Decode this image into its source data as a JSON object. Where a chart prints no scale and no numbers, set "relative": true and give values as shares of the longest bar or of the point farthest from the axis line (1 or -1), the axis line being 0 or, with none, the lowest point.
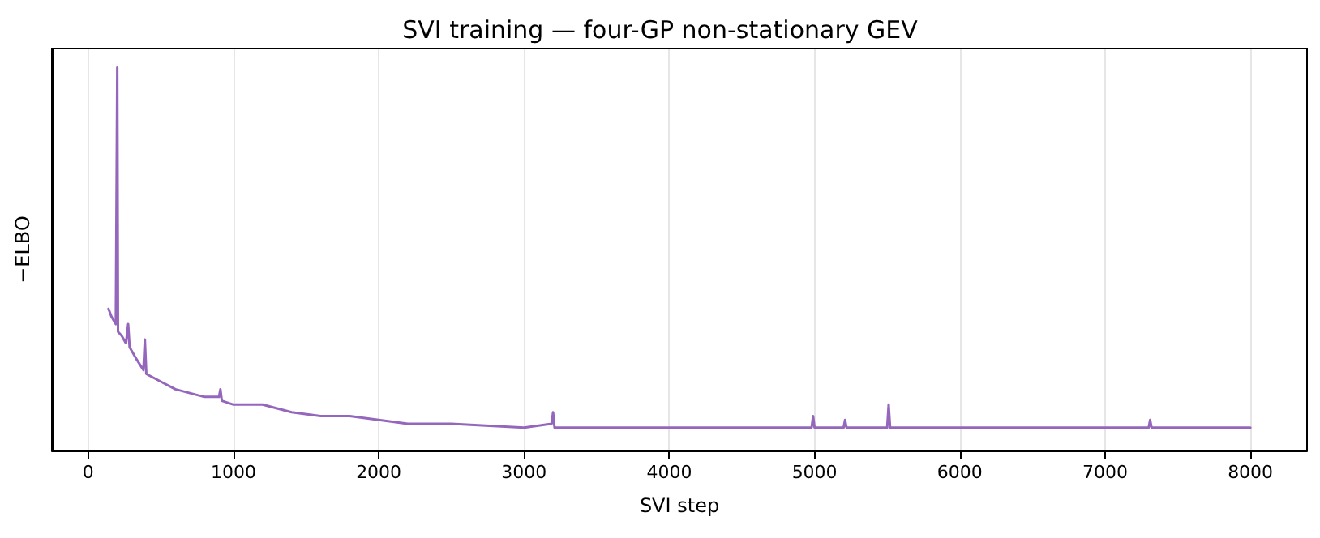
{
  "chart_data": {
    "type": "line",
    "title": "SVI training — four-GP non-stationary GEV",
    "xlabel": "SVI step",
    "ylabel": "−ELBO",
    "relative": true,
    "grid": "x",
    "marker": "none",
    "line_style": "solid",
    "xlim": [
      -250,
      8390
    ],
    "xticks": [
      0,
      1000,
      2000,
      3000,
      4000,
      5000,
      6000,
      7000,
      8000
    ],
    "x": [
      140,
      160,
      190,
      200,
      205,
      230,
      260,
      275,
      285,
      330,
      380,
      390,
      400,
      500,
      600,
      700,
      800,
      900,
      910,
      920,
      1000,
      1200,
      1400,
      1600,
      1800,
      2000,
      2200,
      2500,
      3000,
      3190,
      3200,
      3210,
      3500,
      4000,
      4500,
      4980,
      4990,
      5000,
      5200,
      5210,
      5220,
      5500,
      5510,
      5520,
      6000,
      6500,
      7000,
      7300,
      7310,
      7320,
      8000
    ],
    "series": [
      {
        "color": "#9467bd",
        "values": [
          0.37,
          0.35,
          0.33,
          1,
          0.31,
          0.3,
          0.28,
          0.33,
          0.27,
          0.24,
          0.21,
          0.29,
          0.2,
          0.18,
          0.16,
          0.15,
          0.14,
          0.14,
          0.16,
          0.13,
          0.12,
          0.12,
          0.1,
          0.09,
          0.09,
          0.08,
          0.07,
          0.07,
          0.06,
          0.07,
          0.1,
          0.06,
          0.06,
          0.06,
          0.06,
          0.06,
          0.09,
          0.06,
          0.06,
          0.08,
          0.06,
          0.06,
          0.12,
          0.06,
          0.06,
          0.06,
          0.06,
          0.06,
          0.08,
          0.06,
          0.06
        ]
      }
    ]
  }
}
